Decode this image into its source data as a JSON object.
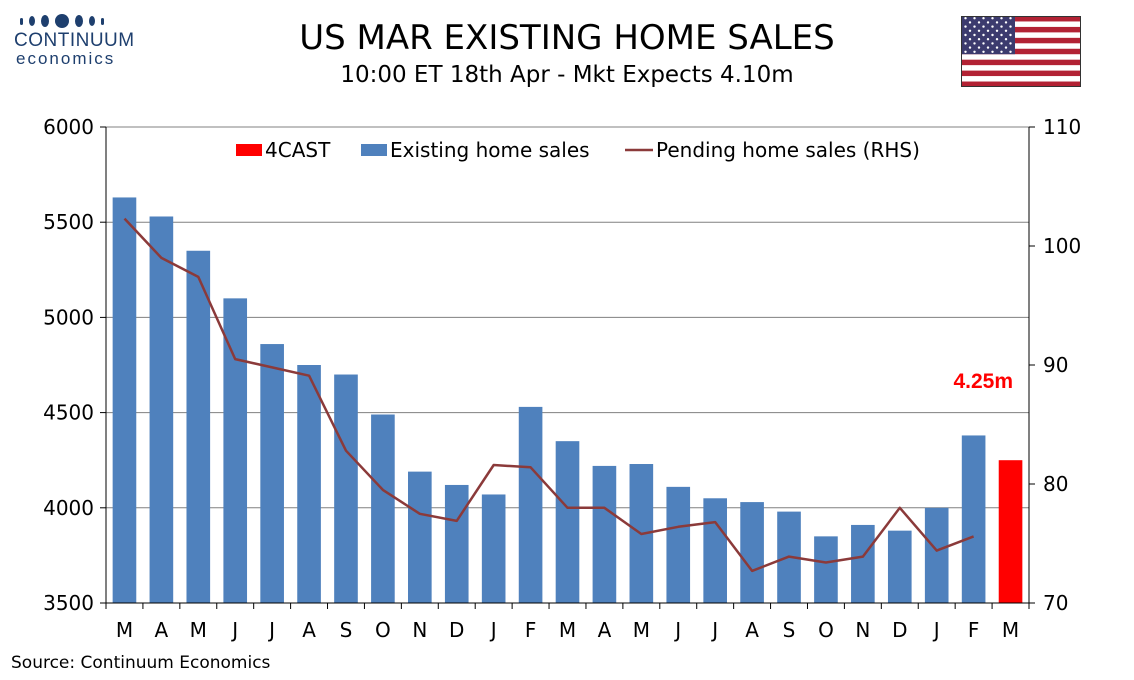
{
  "header": {
    "title": "US MAR EXISTING HOME SALES",
    "subtitle": "10:00 ET 18th Apr - Mkt Expects 4.10m"
  },
  "logo": {
    "name": "CONTINUUM",
    "sub": "economics"
  },
  "footer": {
    "source": "Source: Continuum Economics"
  },
  "colors": {
    "bar": "#4f81bd",
    "forecast": "#ff0000",
    "line": "#8b3a3a",
    "grid": "#808080"
  },
  "chart_data": {
    "type": "bar",
    "categories": [
      "M",
      "A",
      "M",
      "J",
      "J",
      "A",
      "S",
      "O",
      "N",
      "D",
      "J",
      "F",
      "M",
      "A",
      "M",
      "J",
      "J",
      "A",
      "S",
      "O",
      "N",
      "D",
      "J",
      "F",
      "M"
    ],
    "series": [
      {
        "name": "4CAST",
        "type": "bar",
        "axis": "left",
        "values": [
          null,
          null,
          null,
          null,
          null,
          null,
          null,
          null,
          null,
          null,
          null,
          null,
          null,
          null,
          null,
          null,
          null,
          null,
          null,
          null,
          null,
          null,
          null,
          null,
          4250
        ]
      },
      {
        "name": "Existing home sales",
        "type": "bar",
        "axis": "left",
        "values": [
          5630,
          5530,
          5350,
          5100,
          4860,
          4750,
          4700,
          4490,
          4190,
          4120,
          4070,
          4530,
          4350,
          4220,
          4230,
          4110,
          4050,
          4030,
          3980,
          3850,
          3910,
          3880,
          4000,
          4380,
          null
        ]
      },
      {
        "name": "Pending home sales (RHS)",
        "type": "line",
        "axis": "right",
        "values": [
          102.3,
          99.0,
          97.4,
          90.5,
          89.8,
          89.1,
          82.8,
          79.5,
          77.5,
          76.9,
          81.6,
          81.4,
          78.0,
          78.0,
          75.8,
          76.4,
          76.8,
          72.7,
          73.9,
          73.4,
          73.9,
          78.0,
          74.4,
          75.6,
          null
        ]
      }
    ],
    "y_left": {
      "min": 3500,
      "max": 6000,
      "ticks": [
        "3500",
        "4000",
        "4500",
        "5000",
        "5500",
        "6000"
      ]
    },
    "y_right": {
      "min": 70,
      "max": 110,
      "ticks": [
        "70",
        "80",
        "90",
        "100",
        "110"
      ]
    },
    "annotation": "4.25m",
    "legend": "top-center",
    "grid": true
  }
}
